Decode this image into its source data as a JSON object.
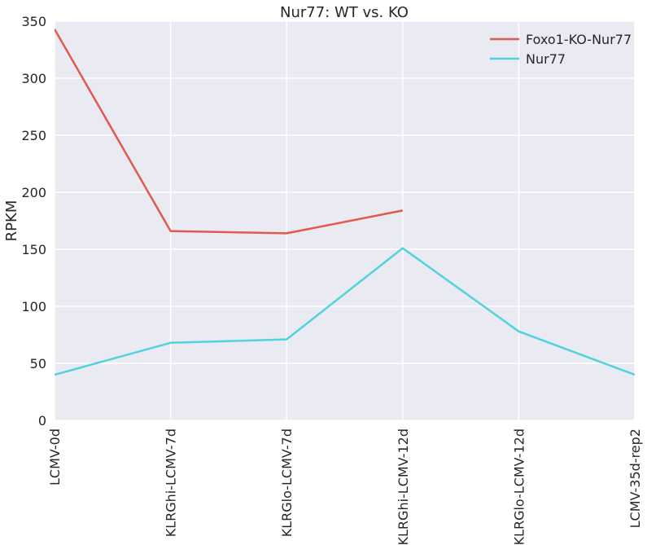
{
  "chart_data": {
    "type": "line",
    "title": "Nur77: WT vs. KO",
    "ylabel": "RPKM",
    "xlabel": "",
    "categories": [
      "LCMV-0d",
      "KLRGhi-LCMV-7d",
      "KLRGlo-LCMV-7d",
      "KLRGhi-LCMV-12d",
      "KLRGlo-LCMV-12d",
      "LCMV-35d-rep2"
    ],
    "ylim": [
      0,
      350
    ],
    "yticks": [
      0,
      50,
      100,
      150,
      200,
      250,
      300,
      350
    ],
    "grid": true,
    "legend_position": "top-right",
    "series": [
      {
        "name": "Foxo1-KO-Nur77",
        "color": "#e05a4f",
        "values": [
          343,
          166,
          164,
          184,
          null,
          null
        ]
      },
      {
        "name": "Nur77",
        "color": "#4fd3dc",
        "values": [
          40,
          68,
          71,
          151,
          78,
          40
        ]
      }
    ]
  }
}
